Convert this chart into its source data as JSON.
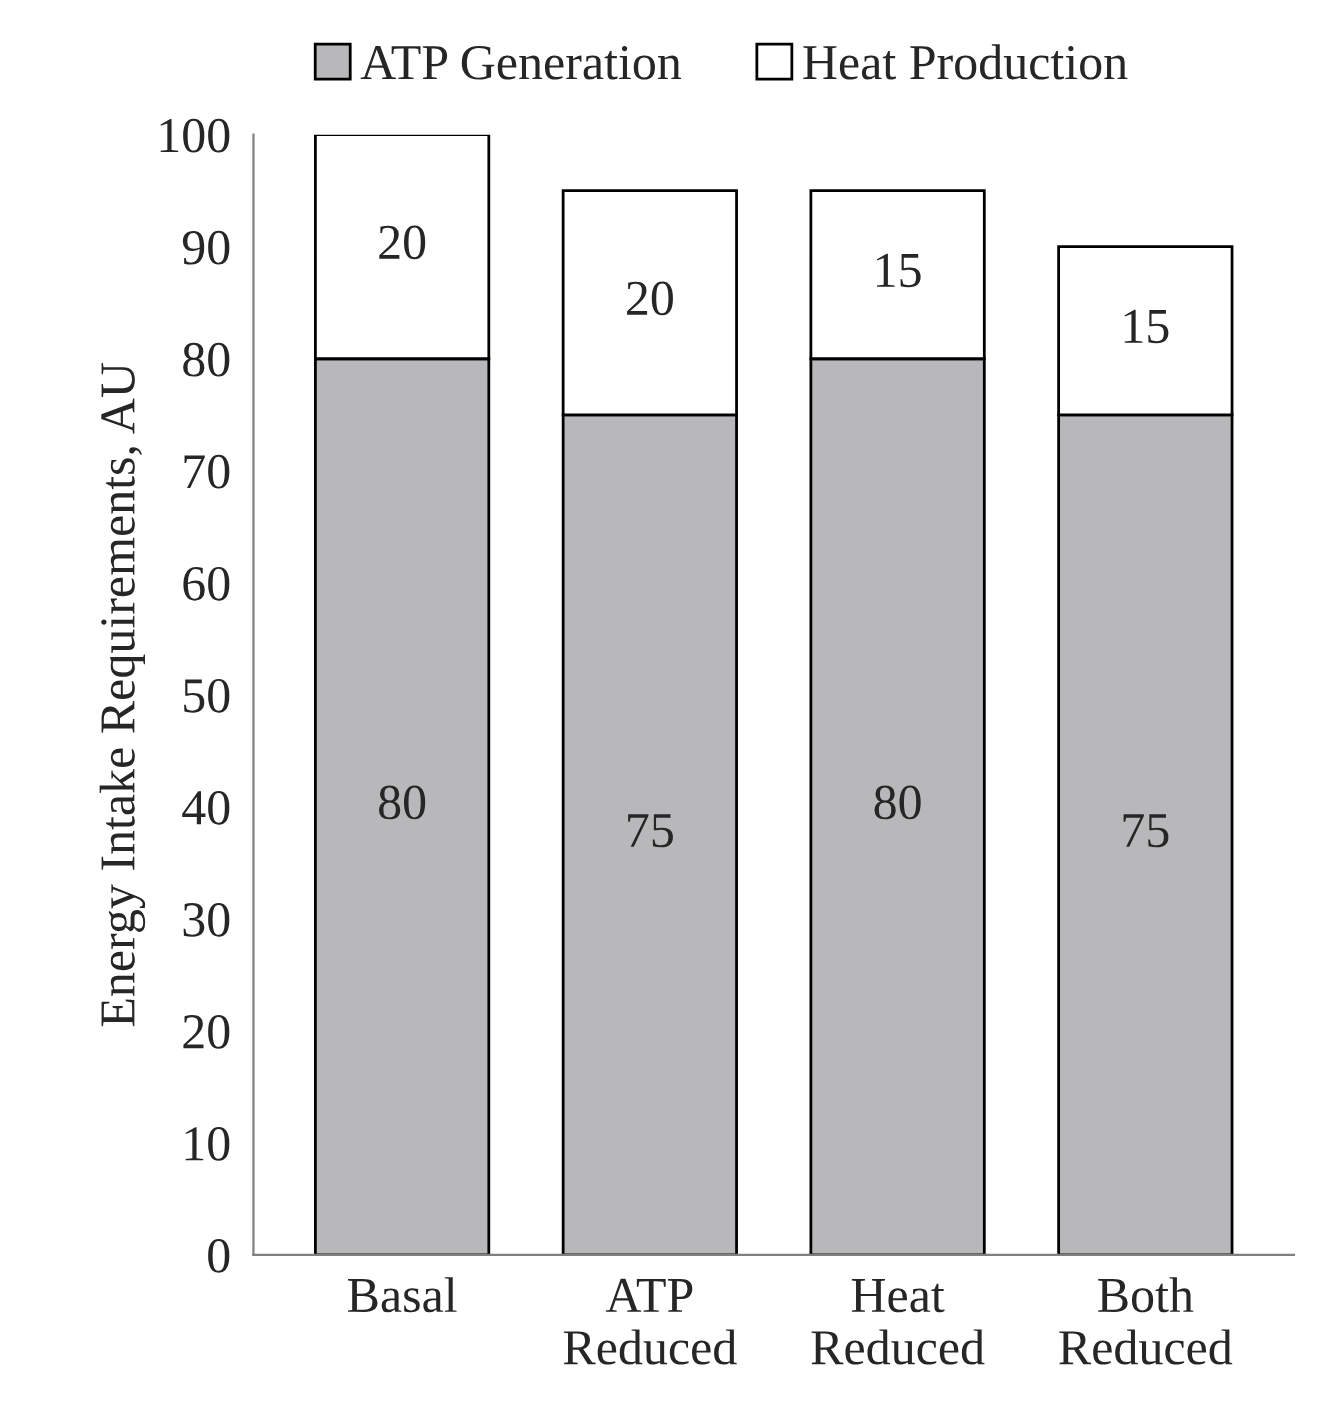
{
  "chart_data": {
    "type": "bar",
    "stacked": true,
    "ylabel": "Energy Intake Requirements, AU",
    "categories": [
      "Basal",
      "ATP\nReduced",
      "Heat\nReduced",
      "Both\nReduced"
    ],
    "series": [
      {
        "name": "ATP Generation",
        "color": "#b8b8ba",
        "values": [
          80,
          75,
          80,
          75
        ]
      },
      {
        "name": "Heat Production",
        "color": "#ffffff",
        "values": [
          20,
          20,
          15,
          15
        ]
      }
    ],
    "ylim": [
      0,
      100
    ],
    "yticks": [
      0,
      10,
      20,
      30,
      40,
      50,
      60,
      70,
      80,
      90,
      100
    ],
    "data_labels": true,
    "grid": false,
    "legend": "top"
  }
}
